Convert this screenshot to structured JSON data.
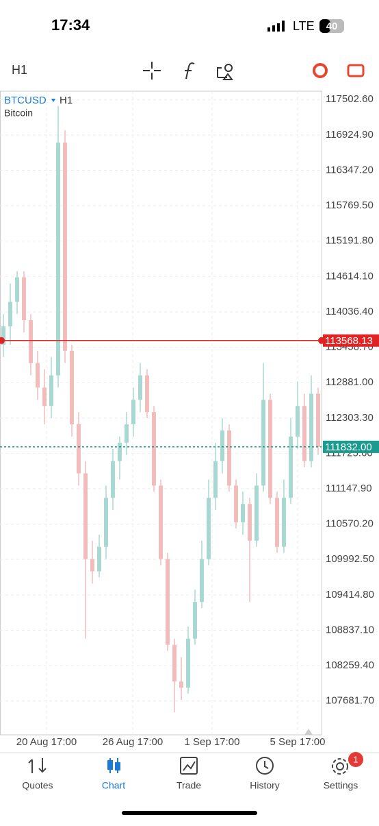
{
  "status_bar": {
    "time": "17:34",
    "network": "LTE",
    "battery": "40"
  },
  "toolbar": {
    "timeframe": "H1"
  },
  "chart_data": {
    "type": "candlestick",
    "symbol": "BTCUSD",
    "symbol_timeframe": "H1",
    "description": "Bitcoin",
    "open": [
      113500,
      113800,
      114200,
      114600,
      113900,
      113200,
      112800,
      112500,
      113000,
      116800,
      113400,
      112200,
      111400,
      110000,
      109800,
      110200,
      111000,
      111600,
      111900,
      112200,
      112600,
      113000,
      112400,
      111200,
      110000,
      108600,
      108000,
      107900,
      108700,
      109300,
      110000,
      111000,
      111600,
      112100,
      111200,
      110600,
      110900,
      110300,
      111200,
      112600,
      111000,
      110200,
      111000,
      112000,
      112500,
      111600,
      112700
    ],
    "high": [
      114000,
      114500,
      114700,
      114700,
      114000,
      113400,
      113100,
      113300,
      117400,
      117000,
      113500,
      112400,
      111600,
      110300,
      110400,
      111200,
      111800,
      112000,
      112400,
      112800,
      113200,
      113100,
      112500,
      111300,
      110100,
      108700,
      108400,
      108900,
      109500,
      110300,
      111300,
      111900,
      112300,
      112200,
      111300,
      111100,
      111000,
      111400,
      113200,
      112700,
      111100,
      111300,
      112300,
      112900,
      112700,
      113000,
      112800
    ],
    "low": [
      113300,
      113500,
      114000,
      113700,
      113000,
      112600,
      112200,
      112300,
      112800,
      113200,
      112000,
      111200,
      108700,
      109600,
      109700,
      110000,
      110800,
      111300,
      111700,
      112000,
      112400,
      112300,
      111100,
      109900,
      108500,
      107500,
      107700,
      107800,
      108600,
      109200,
      109900,
      110800,
      111400,
      111100,
      110500,
      110400,
      109300,
      110200,
      111100,
      110900,
      110100,
      110100,
      110900,
      111800,
      111500,
      111500,
      111700
    ],
    "close": [
      113800,
      114200,
      114600,
      113900,
      113200,
      112800,
      112500,
      113000,
      116800,
      113400,
      112200,
      111400,
      110000,
      109800,
      110200,
      111000,
      111600,
      111900,
      112200,
      112600,
      113000,
      112400,
      111200,
      110000,
      108600,
      108000,
      107900,
      108700,
      109300,
      110000,
      111000,
      111600,
      112100,
      111200,
      110600,
      110900,
      110300,
      111200,
      112600,
      111000,
      110200,
      111000,
      112000,
      112500,
      111600,
      112700,
      111832
    ],
    "up_color": "#a8d8d1",
    "down_color": "#f1bcbc",
    "grid": true,
    "xlim": [
      0,
      47
    ],
    "xticks": [
      {
        "value": 6.8,
        "label": "20 Aug 17:00"
      },
      {
        "value": 19.4,
        "label": "26 Aug 17:00"
      },
      {
        "value": 31,
        "label": "1 Sep 17:00"
      },
      {
        "value": 43.5,
        "label": "5 Sep 17:00"
      }
    ],
    "ylim": [
      107130,
      117640
    ],
    "yticks": [
      {
        "value": 117502.6,
        "label": "117502.60"
      },
      {
        "value": 116924.9,
        "label": "116924.90"
      },
      {
        "value": 116347.2,
        "label": "116347.20"
      },
      {
        "value": 115769.5,
        "label": "115769.50"
      },
      {
        "value": 115191.8,
        "label": "115191.80"
      },
      {
        "value": 114614.1,
        "label": "114614.10"
      },
      {
        "value": 114036.4,
        "label": "114036.40"
      },
      {
        "value": 113458.7,
        "label": "113458.70"
      },
      {
        "value": 112881,
        "label": "112881.00"
      },
      {
        "value": 112303.3,
        "label": "112303.30"
      },
      {
        "value": 111725.6,
        "label": "111725.60"
      },
      {
        "value": 111147.9,
        "label": "111147.90"
      },
      {
        "value": 110570.2,
        "label": "110570.20"
      },
      {
        "value": 109992.5,
        "label": "109992.50"
      },
      {
        "value": 109414.8,
        "label": "109414.80"
      },
      {
        "value": 108837.1,
        "label": "108837.10"
      },
      {
        "value": 108259.4,
        "label": "108259.40"
      },
      {
        "value": 107681.7,
        "label": "107681.70"
      }
    ],
    "price_lines": [
      {
        "value": 113568.13,
        "label": "113568.13",
        "color": "#e02424"
      },
      {
        "value": 111832,
        "label": "111832.00",
        "color": "#1a9b8f"
      }
    ]
  },
  "tab_bar": {
    "tabs": [
      "Quotes",
      "Chart",
      "Trade",
      "History",
      "Settings"
    ],
    "active": 1,
    "badge": "1"
  }
}
